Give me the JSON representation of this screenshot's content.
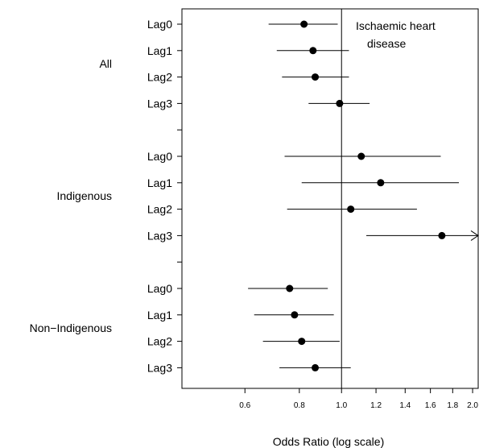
{
  "chart_data": {
    "type": "forest",
    "annotation": [
      "Ischaemic heart",
      "disease"
    ],
    "xlabel": "Odds Ratio (log scale)",
    "x_scale": "log",
    "xlim": [
      0.43,
      2.06
    ],
    "x_ticks": [
      0.6,
      0.8,
      1.0,
      1.2,
      1.4,
      1.6,
      1.8,
      2.0
    ],
    "x_tick_labels": [
      "0.6",
      "0.8",
      "1.0",
      "1.2",
      "1.4",
      "1.6",
      "1.8",
      "2.0"
    ],
    "reference_line": 1.0,
    "groups": [
      {
        "name": "All",
        "rows": [
          {
            "lag": "Lag0",
            "or": 0.82,
            "lo": 0.68,
            "hi": 0.98
          },
          {
            "lag": "Lag1",
            "or": 0.86,
            "lo": 0.71,
            "hi": 1.04
          },
          {
            "lag": "Lag2",
            "or": 0.87,
            "lo": 0.73,
            "hi": 1.04
          },
          {
            "lag": "Lag3",
            "or": 0.99,
            "lo": 0.84,
            "hi": 1.16
          }
        ]
      },
      {
        "name": "Indigenous",
        "rows": [
          {
            "lag": "Lag0",
            "or": 1.11,
            "lo": 0.74,
            "hi": 1.69
          },
          {
            "lag": "Lag1",
            "or": 1.23,
            "lo": 0.81,
            "hi": 1.86
          },
          {
            "lag": "Lag2",
            "or": 1.05,
            "lo": 0.75,
            "hi": 1.49
          },
          {
            "lag": "Lag3",
            "or": 1.7,
            "lo": 1.14,
            "hi": 2.06,
            "truncated": true
          }
        ]
      },
      {
        "name": "Non−Indigenous",
        "rows": [
          {
            "lag": "Lag0",
            "or": 0.76,
            "lo": 0.61,
            "hi": 0.93
          },
          {
            "lag": "Lag1",
            "or": 0.78,
            "lo": 0.63,
            "hi": 0.96
          },
          {
            "lag": "Lag2",
            "or": 0.81,
            "lo": 0.66,
            "hi": 0.99
          },
          {
            "lag": "Lag3",
            "or": 0.87,
            "lo": 0.72,
            "hi": 1.05
          }
        ]
      }
    ]
  }
}
